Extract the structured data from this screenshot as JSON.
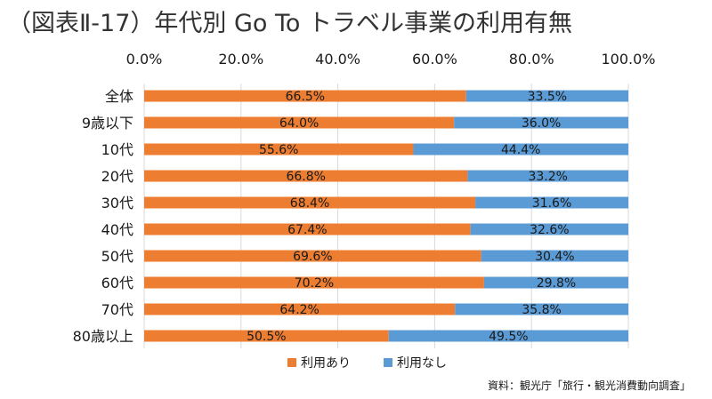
{
  "colors": {
    "series_used": "#ED7D31",
    "series_not_used": "#5B9BD5",
    "grid": "#D9D9D9"
  },
  "chart_data": {
    "type": "bar",
    "orientation": "horizontal",
    "stacked": true,
    "title": "（図表Ⅱ-17）年代別 Go To トラベル事業の利用有無",
    "categories": [
      "全体",
      "9歳以下",
      "10代",
      "20代",
      "30代",
      "40代",
      "50代",
      "60代",
      "70代",
      "80歳以上"
    ],
    "series": [
      {
        "name": "利用あり",
        "values": [
          66.5,
          64.0,
          55.6,
          66.8,
          68.4,
          67.4,
          69.6,
          70.2,
          64.2,
          50.5
        ]
      },
      {
        "name": "利用なし",
        "values": [
          33.5,
          36.0,
          44.4,
          33.2,
          31.6,
          32.6,
          30.4,
          29.8,
          35.8,
          49.5
        ]
      }
    ],
    "data_labels": [
      [
        "66.5%",
        "64.0%",
        "55.6%",
        "66.8%",
        "68.4%",
        "67.4%",
        "69.6%",
        "70.2%",
        "64.2%",
        "50.5%"
      ],
      [
        "33.5%",
        "36.0%",
        "44.4%",
        "33.2%",
        "31.6%",
        "32.6%",
        "30.4%",
        "29.8%",
        "35.8%",
        "49.5%"
      ]
    ],
    "xlim": [
      0,
      100
    ],
    "xticks": [
      0,
      20,
      40,
      60,
      80,
      100
    ],
    "xtick_labels": [
      "0.0%",
      "20.0%",
      "40.0%",
      "60.0%",
      "80.0%",
      "100.0%"
    ],
    "x_axis_position": "top",
    "grid": true,
    "legend": [
      "利用あり",
      "利用なし"
    ],
    "legend_position": "bottom",
    "source": "資料：観光庁「旅行・観光消費動向調査」"
  }
}
